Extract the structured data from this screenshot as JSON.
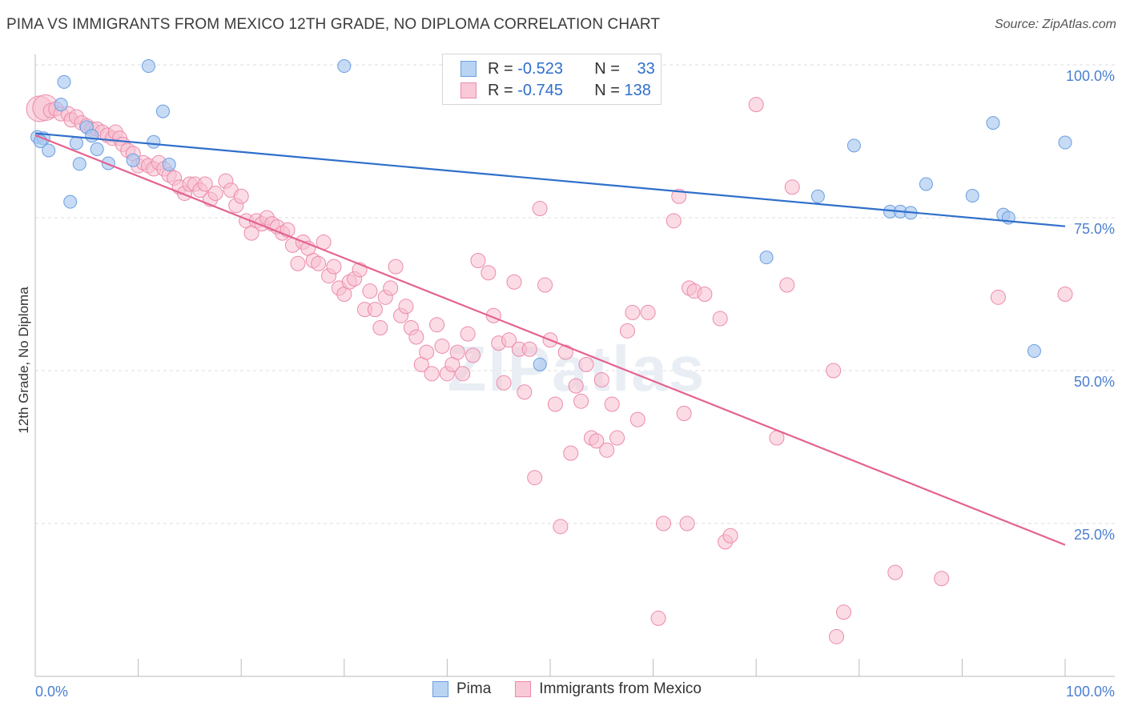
{
  "header": {
    "title": "PIMA VS IMMIGRANTS FROM MEXICO 12TH GRADE, NO DIPLOMA CORRELATION CHART",
    "source": "Source: ZipAtlas.com"
  },
  "legend": {
    "pima": {
      "r_label": "R = ",
      "r_value": "-0.523",
      "n_label": "N = ",
      "n_value": "33"
    },
    "mexico": {
      "r_label": "R = ",
      "r_value": "-0.745",
      "n_label": "N = ",
      "n_value": "138"
    }
  },
  "bottom_legend": {
    "pima": "Pima",
    "mexico": "Immigrants from Mexico"
  },
  "colors": {
    "pima_fill": "#a9c8f0",
    "pima_stroke": "#6a9ee0",
    "pima_line": "#2f6fcb",
    "mexico_fill": "#f7bfd0",
    "mexico_stroke": "#ec8aab",
    "mexico_line": "#e4628f",
    "tick_text": "#4a7fd0",
    "grid": "#dddddd"
  },
  "chart_data": {
    "type": "scatter",
    "ylabel": "12th Grade, No Diploma",
    "xlabel": "",
    "xlim": [
      0,
      100
    ],
    "ylim": [
      0,
      100
    ],
    "x_tick_labels": [
      "0.0%",
      "100.0%"
    ],
    "y_ticks": [
      25,
      50,
      75,
      100
    ],
    "y_tick_labels": [
      "25.0%",
      "50.0%",
      "75.0%",
      "100.0%"
    ],
    "grid": true,
    "watermark": "ZIPatlas",
    "series": [
      {
        "name": "Pima",
        "trend": [
          [
            0,
            88.8
          ],
          [
            100,
            73.6
          ]
        ],
        "points": [
          [
            0.2,
            88.2
          ],
          [
            0.8,
            88.0
          ],
          [
            1.3,
            86.0
          ],
          [
            2.5,
            93.5
          ],
          [
            2.8,
            97.2
          ],
          [
            3.4,
            77.6
          ],
          [
            4.0,
            87.2
          ],
          [
            4.3,
            83.8
          ],
          [
            5.0,
            89.8
          ],
          [
            5.5,
            88.4
          ],
          [
            6.0,
            86.2
          ],
          [
            7.1,
            83.9
          ],
          [
            9.5,
            84.4
          ],
          [
            11.0,
            99.8
          ],
          [
            11.5,
            87.4
          ],
          [
            12.4,
            92.4
          ],
          [
            13.0,
            83.7
          ],
          [
            30.0,
            99.8
          ],
          [
            49.0,
            51.0
          ],
          [
            71.0,
            68.5
          ],
          [
            76.0,
            78.5
          ],
          [
            79.5,
            86.8
          ],
          [
            83.0,
            76.0
          ],
          [
            84.0,
            76.0
          ],
          [
            85.0,
            75.8
          ],
          [
            86.5,
            80.5
          ],
          [
            91.0,
            78.6
          ],
          [
            93.0,
            90.5
          ],
          [
            94.0,
            75.5
          ],
          [
            94.5,
            75.0
          ],
          [
            97.0,
            53.2
          ],
          [
            100.0,
            87.3
          ],
          [
            0.5,
            87.5
          ]
        ]
      },
      {
        "name": "Immigrants from Mexico",
        "trend": [
          [
            0,
            88.5
          ],
          [
            100,
            21.5
          ]
        ],
        "points": [
          [
            0.4,
            92.8
          ],
          [
            1.0,
            93.0
          ],
          [
            1.5,
            92.5
          ],
          [
            2.0,
            92.8
          ],
          [
            2.5,
            92.0
          ],
          [
            3.2,
            92.0
          ],
          [
            3.5,
            91.0
          ],
          [
            4.0,
            91.5
          ],
          [
            4.5,
            90.5
          ],
          [
            5.0,
            90.0
          ],
          [
            5.5,
            89.5
          ],
          [
            6.0,
            89.5
          ],
          [
            6.5,
            89.0
          ],
          [
            7.0,
            88.5
          ],
          [
            7.5,
            88.0
          ],
          [
            7.8,
            89.0
          ],
          [
            8.2,
            88.0
          ],
          [
            8.5,
            87.0
          ],
          [
            9.0,
            86.0
          ],
          [
            9.5,
            85.5
          ],
          [
            10.0,
            83.5
          ],
          [
            10.5,
            84.0
          ],
          [
            11.0,
            83.5
          ],
          [
            11.5,
            83.0
          ],
          [
            12.0,
            84.0
          ],
          [
            12.5,
            83.0
          ],
          [
            13.0,
            82.0
          ],
          [
            13.5,
            81.5
          ],
          [
            14.0,
            80.0
          ],
          [
            14.5,
            79.0
          ],
          [
            15.0,
            80.5
          ],
          [
            15.5,
            80.5
          ],
          [
            16.0,
            79.5
          ],
          [
            16.5,
            80.5
          ],
          [
            17.0,
            78.0
          ],
          [
            17.5,
            79.0
          ],
          [
            18.5,
            81.0
          ],
          [
            19.0,
            79.5
          ],
          [
            19.5,
            77.0
          ],
          [
            20.0,
            78.5
          ],
          [
            20.5,
            74.5
          ],
          [
            21.0,
            72.5
          ],
          [
            21.5,
            74.5
          ],
          [
            22.0,
            74.0
          ],
          [
            22.5,
            75.0
          ],
          [
            23.0,
            74.0
          ],
          [
            23.5,
            73.5
          ],
          [
            24.0,
            72.5
          ],
          [
            24.5,
            73.0
          ],
          [
            25.0,
            70.5
          ],
          [
            25.5,
            67.5
          ],
          [
            26.0,
            71.0
          ],
          [
            26.5,
            70.0
          ],
          [
            27.0,
            68.0
          ],
          [
            27.5,
            67.5
          ],
          [
            28.0,
            71.0
          ],
          [
            28.5,
            65.5
          ],
          [
            29.0,
            67.0
          ],
          [
            29.5,
            63.5
          ],
          [
            30.0,
            62.5
          ],
          [
            30.5,
            64.5
          ],
          [
            31.0,
            65.0
          ],
          [
            31.5,
            66.5
          ],
          [
            32.0,
            60.0
          ],
          [
            32.5,
            63.0
          ],
          [
            33.0,
            60.0
          ],
          [
            33.5,
            57.0
          ],
          [
            34.0,
            62.0
          ],
          [
            34.5,
            63.5
          ],
          [
            35.0,
            67.0
          ],
          [
            35.5,
            59.0
          ],
          [
            36.0,
            60.5
          ],
          [
            36.5,
            57.0
          ],
          [
            37.0,
            55.5
          ],
          [
            37.5,
            51.0
          ],
          [
            38.0,
            53.0
          ],
          [
            38.5,
            49.5
          ],
          [
            39.0,
            57.5
          ],
          [
            39.5,
            54.0
          ],
          [
            40.0,
            49.5
          ],
          [
            40.5,
            51.0
          ],
          [
            41.0,
            53.0
          ],
          [
            41.5,
            49.5
          ],
          [
            42.0,
            56.0
          ],
          [
            42.5,
            52.5
          ],
          [
            43.0,
            68.0
          ],
          [
            44.0,
            66.0
          ],
          [
            44.5,
            59.0
          ],
          [
            45.0,
            54.5
          ],
          [
            45.5,
            48.0
          ],
          [
            46.0,
            55.0
          ],
          [
            46.5,
            64.5
          ],
          [
            47.0,
            53.5
          ],
          [
            47.5,
            46.5
          ],
          [
            48.0,
            53.5
          ],
          [
            48.5,
            32.5
          ],
          [
            49.0,
            76.5
          ],
          [
            49.5,
            64.0
          ],
          [
            50.0,
            55.0
          ],
          [
            50.5,
            44.5
          ],
          [
            51.0,
            24.5
          ],
          [
            51.5,
            53.0
          ],
          [
            52.0,
            36.5
          ],
          [
            52.5,
            47.5
          ],
          [
            53.0,
            45.0
          ],
          [
            53.5,
            51.0
          ],
          [
            54.0,
            39.0
          ],
          [
            54.5,
            38.5
          ],
          [
            55.0,
            48.5
          ],
          [
            55.5,
            37.0
          ],
          [
            56.0,
            44.5
          ],
          [
            56.5,
            39.0
          ],
          [
            57.5,
            56.5
          ],
          [
            58.0,
            59.5
          ],
          [
            58.5,
            42.0
          ],
          [
            59.5,
            59.5
          ],
          [
            60.5,
            9.5
          ],
          [
            61.0,
            25.0
          ],
          [
            62.0,
            74.5
          ],
          [
            62.5,
            78.5
          ],
          [
            63.0,
            43.0
          ],
          [
            63.3,
            25.0
          ],
          [
            63.5,
            63.5
          ],
          [
            64.0,
            63.0
          ],
          [
            65.0,
            62.5
          ],
          [
            66.5,
            58.5
          ],
          [
            67.0,
            22.0
          ],
          [
            67.5,
            23.0
          ],
          [
            70.0,
            93.5
          ],
          [
            72.0,
            39.0
          ],
          [
            73.0,
            64.0
          ],
          [
            73.5,
            80.0
          ],
          [
            77.5,
            50.0
          ],
          [
            77.8,
            6.5
          ],
          [
            78.5,
            10.5
          ],
          [
            83.5,
            17.0
          ],
          [
            88.0,
            16.0
          ],
          [
            93.5,
            62.0
          ],
          [
            100.0,
            62.5
          ]
        ]
      }
    ]
  }
}
